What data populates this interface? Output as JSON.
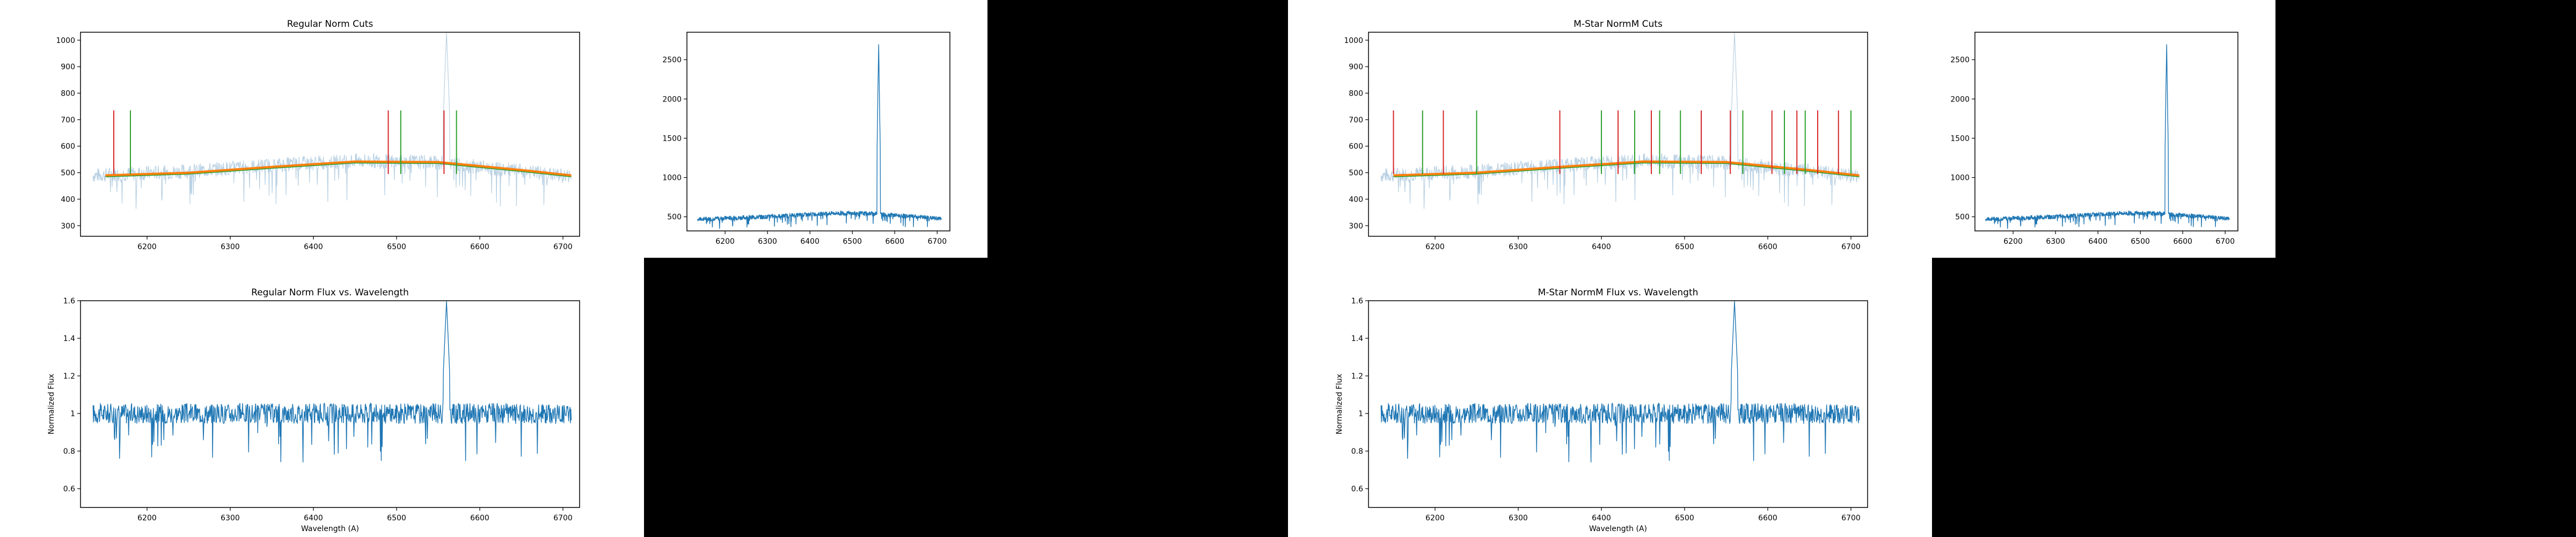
{
  "chart_data": [
    {
      "type": "line",
      "title": "Regular Norm Cuts",
      "xlabel": "",
      "ylabel": "",
      "xlim": [
        6120,
        6720
      ],
      "ylim": [
        260,
        1030
      ],
      "xticks": [
        6200,
        6300,
        6400,
        6500,
        6600,
        6700
      ],
      "yticks": [
        300,
        400,
        500,
        600,
        700,
        800,
        900,
        1000
      ],
      "spectrum": {
        "x_start": 6135,
        "x_end": 6710,
        "level": [
          [
            6135,
            490
          ],
          [
            6250,
            505
          ],
          [
            6350,
            528
          ],
          [
            6450,
            545
          ],
          [
            6550,
            538
          ],
          [
            6650,
            505
          ],
          [
            6710,
            485
          ]
        ],
        "noise": 28,
        "peak_x": 6560,
        "peak_y": 1030
      },
      "fit": [
        [
          6150,
          490
        ],
        [
          6250,
          500
        ],
        [
          6350,
          522
        ],
        [
          6450,
          542
        ],
        [
          6550,
          540
        ],
        [
          6650,
          510
        ],
        [
          6710,
          490
        ]
      ],
      "red_cuts": [
        6160,
        6180,
        6490,
        6557
      ],
      "green_cuts": [
        6180,
        6505,
        6572
      ],
      "cut_top": 735,
      "cut_bottom": 495
    },
    {
      "type": "line",
      "title": "",
      "xlabel": "",
      "ylabel": "",
      "xlim": [
        6110,
        6730
      ],
      "ylim": [
        320,
        2850
      ],
      "xticks": [
        6200,
        6300,
        6400,
        6500,
        6600,
        6700
      ],
      "yticks": [
        500,
        1000,
        1500,
        2000,
        2500
      ],
      "spectrum": {
        "x_start": 6135,
        "x_end": 6710,
        "level": [
          [
            6135,
            470
          ],
          [
            6300,
            500
          ],
          [
            6450,
            545
          ],
          [
            6550,
            540
          ],
          [
            6710,
            475
          ]
        ],
        "noise": 28,
        "peak_x": 6562,
        "peak_y": 2720
      }
    },
    {
      "type": "line",
      "title": "Regular Norm Flux vs. Wavelength",
      "xlabel": "Wavelength (A)",
      "ylabel": "Normalized Flux",
      "xlim": [
        6120,
        6720
      ],
      "ylim": [
        0.5,
        1.6
      ],
      "xticks": [
        6200,
        6300,
        6400,
        6500,
        6600,
        6700
      ],
      "yticks": [
        0.6,
        0.8,
        1.0,
        1.2,
        1.4,
        1.6
      ],
      "spectrum": {
        "x_start": 6135,
        "x_end": 6710,
        "level": [
          [
            6135,
            1.0
          ],
          [
            6710,
            1.0
          ]
        ],
        "noise": 0.055,
        "peak_x": 6560,
        "peak_y": 1.6
      }
    },
    {
      "type": "line",
      "title": "M-Star NormM Cuts",
      "xlabel": "",
      "ylabel": "",
      "xlim": [
        6120,
        6720
      ],
      "ylim": [
        260,
        1030
      ],
      "xticks": [
        6200,
        6300,
        6400,
        6500,
        6600,
        6700
      ],
      "yticks": [
        300,
        400,
        500,
        600,
        700,
        800,
        900,
        1000
      ],
      "spectrum": {
        "x_start": 6135,
        "x_end": 6710,
        "level": [
          [
            6135,
            490
          ],
          [
            6250,
            505
          ],
          [
            6350,
            528
          ],
          [
            6450,
            545
          ],
          [
            6550,
            538
          ],
          [
            6650,
            505
          ],
          [
            6710,
            485
          ]
        ],
        "noise": 28,
        "peak_x": 6560,
        "peak_y": 1030
      },
      "fit": [
        [
          6150,
          490
        ],
        [
          6250,
          500
        ],
        [
          6350,
          522
        ],
        [
          6450,
          542
        ],
        [
          6550,
          540
        ],
        [
          6650,
          510
        ],
        [
          6710,
          490
        ]
      ],
      "red_cuts": [
        6150,
        6210,
        6350,
        6420,
        6460,
        6520,
        6555,
        6605,
        6635,
        6660,
        6685
      ],
      "green_cuts": [
        6185,
        6250,
        6400,
        6440,
        6470,
        6495,
        6570,
        6620,
        6645,
        6700
      ],
      "cut_top": 735,
      "cut_bottom": 495
    },
    {
      "type": "line",
      "title": "",
      "xlabel": "",
      "ylabel": "",
      "xlim": [
        6110,
        6730
      ],
      "ylim": [
        320,
        2850
      ],
      "xticks": [
        6200,
        6300,
        6400,
        6500,
        6600,
        6700
      ],
      "yticks": [
        500,
        1000,
        1500,
        2000,
        2500
      ],
      "spectrum": {
        "x_start": 6135,
        "x_end": 6710,
        "level": [
          [
            6135,
            470
          ],
          [
            6300,
            500
          ],
          [
            6450,
            545
          ],
          [
            6550,
            540
          ],
          [
            6710,
            475
          ]
        ],
        "noise": 28,
        "peak_x": 6562,
        "peak_y": 2720
      }
    },
    {
      "type": "line",
      "title": "M-Star NormM Flux vs. Wavelength",
      "xlabel": "Wavelength (A)",
      "ylabel": "Normalized Flux",
      "xlim": [
        6120,
        6720
      ],
      "ylim": [
        0.5,
        1.6
      ],
      "xticks": [
        6200,
        6300,
        6400,
        6500,
        6600,
        6700
      ],
      "yticks": [
        0.6,
        0.8,
        1.0,
        1.2,
        1.4,
        1.6
      ],
      "spectrum": {
        "x_start": 6135,
        "x_end": 6710,
        "level": [
          [
            6135,
            1.0
          ],
          [
            6710,
            1.0
          ]
        ],
        "noise": 0.055,
        "peak_x": 6560,
        "peak_y": 1.6
      }
    }
  ],
  "colors": {
    "spectrum": "#1f77b4",
    "spectrum_light": "#b9d1e3",
    "fit_orange": "#ff7f0e",
    "fit_green": "#2ca02c",
    "cut_red": "#d62728",
    "cut_green": "#2ca02c"
  }
}
